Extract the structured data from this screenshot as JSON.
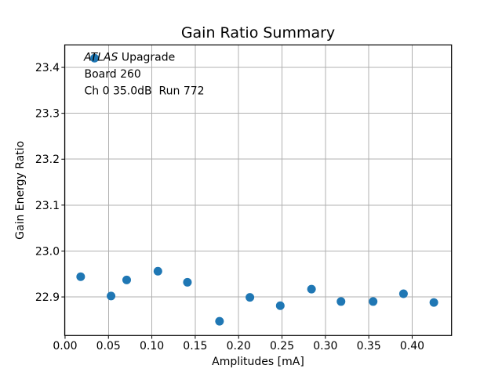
{
  "figure": {
    "kind": "matplotlib-scatter-figure"
  },
  "chart_data": {
    "type": "scatter",
    "title": "Gain Ratio Summary",
    "xlabel": "Amplitudes [mA]",
    "ylabel": "Gain Energy Ratio",
    "xlim": [
      -0.0004,
      0.4454
    ],
    "ylim": [
      22.816,
      23.449
    ],
    "x_ticks": [
      0.0,
      0.05,
      0.1,
      0.15,
      0.2,
      0.25,
      0.3,
      0.35,
      0.4
    ],
    "x_tick_labels": [
      "0.00",
      "0.05",
      "0.10",
      "0.15",
      "0.20",
      "0.25",
      "0.30",
      "0.35",
      "0.40"
    ],
    "y_ticks": [
      22.9,
      23.0,
      23.1,
      23.2,
      23.3,
      23.4
    ],
    "y_tick_labels": [
      "22.9",
      "23.0",
      "23.1",
      "23.2",
      "23.3",
      "23.4"
    ],
    "grid": true,
    "legend": "none",
    "marker_color": "#1f77b4",
    "grid_color": "#b0b0b0",
    "marker_radius_px": 5.5,
    "points": [
      {
        "x": 0.018,
        "y": 22.944
      },
      {
        "x": 0.034,
        "y": 23.42
      },
      {
        "x": 0.053,
        "y": 22.902
      },
      {
        "x": 0.071,
        "y": 22.937
      },
      {
        "x": 0.107,
        "y": 22.956
      },
      {
        "x": 0.141,
        "y": 22.932
      },
      {
        "x": 0.178,
        "y": 22.847
      },
      {
        "x": 0.213,
        "y": 22.899
      },
      {
        "x": 0.248,
        "y": 22.881
      },
      {
        "x": 0.284,
        "y": 22.917
      },
      {
        "x": 0.318,
        "y": 22.89
      },
      {
        "x": 0.355,
        "y": 22.89
      },
      {
        "x": 0.39,
        "y": 22.907
      },
      {
        "x": 0.425,
        "y": 22.888
      }
    ],
    "annotation_lines": [
      "ATLAS Upagrade",
      "Board 260",
      "Ch 0 35.0dB  Run 772"
    ],
    "annotation_parts": {
      "line1_italic": "ATLAS",
      "line1_rest": " Upagrade",
      "line2": "Board 260",
      "line3": "Ch 0 35.0dB  Run 772"
    }
  }
}
